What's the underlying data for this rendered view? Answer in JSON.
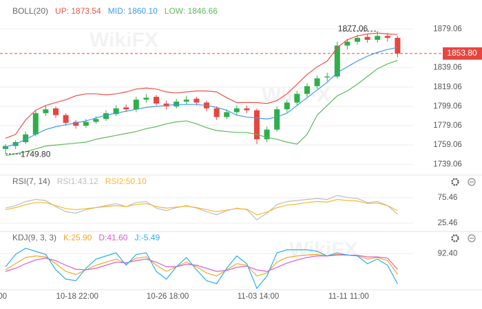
{
  "chart_data": [
    {
      "type": "candlestick",
      "title": "BOLL(20)",
      "categories": [
        "00",
        null,
        null,
        null,
        null,
        null,
        null,
        "10-18 22:00",
        null,
        null,
        null,
        null,
        null,
        null,
        null,
        null,
        "10-26 18:00",
        null,
        null,
        null,
        null,
        null,
        null,
        null,
        null,
        "11-03 14:00",
        null,
        null,
        null,
        null,
        null,
        null,
        null,
        null,
        "11-11 11:00",
        null,
        null,
        null,
        null,
        null
      ],
      "open": [
        1755,
        1758,
        1762,
        1770,
        1792,
        1797,
        1790,
        1783,
        1779,
        1783,
        1786,
        1791,
        1798,
        1796,
        1806,
        1809,
        1802,
        1799,
        1804,
        1807,
        1803,
        1797,
        1788,
        1793,
        1797,
        1795,
        1765,
        1775,
        1796,
        1803,
        1812,
        1820,
        1829,
        1830,
        1862,
        1866,
        1871,
        1868,
        1872,
        1870
      ],
      "high": [
        1760,
        1764,
        1773,
        1795,
        1800,
        1799,
        1792,
        1785,
        1786,
        1789,
        1795,
        1800,
        1801,
        1809,
        1812,
        1811,
        1805,
        1807,
        1810,
        1809,
        1805,
        1799,
        1796,
        1800,
        1800,
        1797,
        1778,
        1799,
        1806,
        1815,
        1823,
        1831,
        1834,
        1866,
        1869,
        1873,
        1874,
        1877.06,
        1875,
        1872
      ],
      "low": [
        1749.8,
        1755,
        1760,
        1768,
        1789,
        1787,
        1779,
        1776,
        1777,
        1781,
        1784,
        1789,
        1793,
        1793,
        1803,
        1800,
        1796,
        1797,
        1801,
        1800,
        1794,
        1785,
        1786,
        1790,
        1792,
        1760,
        1762,
        1773,
        1793,
        1800,
        1809,
        1817,
        1825,
        1828,
        1858,
        1863,
        1865,
        1865,
        1866,
        1850
      ],
      "close": [
        1758,
        1762,
        1770,
        1792,
        1796,
        1790,
        1782,
        1779,
        1783,
        1786,
        1792,
        1797,
        1796,
        1806,
        1808,
        1802,
        1799,
        1804,
        1806,
        1803,
        1797,
        1788,
        1793,
        1797,
        1795,
        1765,
        1775,
        1796,
        1803,
        1812,
        1820,
        1828,
        1830,
        1862,
        1866,
        1870,
        1868,
        1872,
        1870,
        1853.8
      ],
      "up_color": "#2fae4a",
      "down_color": "#e8453f",
      "series": [
        {
          "name": "UP: 1873.54",
          "color": "#ef4f48",
          "values": [
            1766,
            1770,
            1785,
            1795,
            1800,
            1803,
            1806,
            1810,
            1812,
            1812,
            1811,
            1812,
            1814,
            1817,
            1818,
            1817,
            1814,
            1813,
            1814,
            1815,
            1815,
            1814,
            1808,
            1803,
            1803,
            1803,
            1802,
            1805,
            1812,
            1822,
            1832,
            1840,
            1846,
            1860,
            1868,
            1872,
            1874,
            1875,
            1874,
            1873.54
          ]
        },
        {
          "name": "MID: 1860.10",
          "color": "#3d9be9",
          "values": [
            1757,
            1760,
            1765,
            1770,
            1775,
            1778,
            1780,
            1782,
            1784,
            1787,
            1790,
            1792,
            1794,
            1796,
            1798,
            1799,
            1800,
            1801,
            1801,
            1801,
            1800,
            1798,
            1795,
            1790,
            1788,
            1787,
            1786,
            1788,
            1792,
            1800,
            1808,
            1816,
            1824,
            1834,
            1840,
            1846,
            1851,
            1855,
            1858,
            1860.1
          ]
        },
        {
          "name": "LOW: 1846.66",
          "color": "#5cb85c",
          "values": [
            1748,
            1750,
            1752,
            1755,
            1758,
            1759,
            1760,
            1761,
            1762,
            1765,
            1767,
            1769,
            1771,
            1773,
            1776,
            1778,
            1781,
            1783,
            1784,
            1781,
            1777,
            1774,
            1773,
            1772,
            1772,
            1770,
            1767,
            1765,
            1762,
            1760,
            1770,
            1790,
            1800,
            1810,
            1815,
            1822,
            1830,
            1838,
            1843,
            1846.66
          ]
        }
      ],
      "ylim": [
        1730,
        1895
      ],
      "yticks": [
        1879.06,
        1839.06,
        1819.06,
        1799.06,
        1779.06,
        1759.06,
        1739.06
      ],
      "grid": true,
      "last_price": {
        "value": 1853.8,
        "label": "1853.80"
      },
      "annotations": [
        {
          "value": 1877.06,
          "label": "1877.06"
        },
        {
          "value": 1749.8,
          "label": "1749.80"
        }
      ],
      "watermark": "WikiFX"
    },
    {
      "type": "line",
      "title": "RSI(7, 14)",
      "series": [
        {
          "name": "RSI1:43.12",
          "color": "#bdbdbd",
          "values": [
            55,
            60,
            68,
            72,
            70,
            58,
            48,
            45,
            52,
            56,
            60,
            64,
            58,
            66,
            68,
            55,
            50,
            56,
            60,
            55,
            48,
            42,
            50,
            55,
            52,
            32,
            45,
            62,
            68,
            70,
            72,
            74,
            72,
            80,
            76,
            74,
            66,
            68,
            60,
            43.12
          ]
        },
        {
          "name": "RSI2:50.10",
          "color": "#f5b82e",
          "values": [
            52,
            56,
            62,
            66,
            66,
            60,
            54,
            52,
            54,
            56,
            58,
            60,
            58,
            62,
            64,
            58,
            55,
            57,
            59,
            56,
            52,
            48,
            51,
            54,
            53,
            42,
            47,
            56,
            61,
            63,
            66,
            68,
            67,
            72,
            70,
            69,
            64,
            65,
            60,
            50.1
          ]
        }
      ],
      "ylim": [
        10,
        95
      ],
      "yticks": [
        75.46,
        25.46
      ],
      "grid": true
    },
    {
      "type": "line",
      "title": "KDJ(9, 3, 3)",
      "series": [
        {
          "name": "K:25.90",
          "color": "#f5a623",
          "values": [
            40,
            60,
            80,
            85,
            82,
            60,
            35,
            25,
            40,
            55,
            65,
            75,
            60,
            78,
            82,
            55,
            35,
            50,
            65,
            50,
            30,
            20,
            40,
            60,
            55,
            20,
            30,
            65,
            80,
            85,
            88,
            90,
            85,
            90,
            88,
            86,
            75,
            80,
            70,
            25.9
          ]
        },
        {
          "name": "D:41.60",
          "color": "#d45fd4",
          "values": [
            35,
            45,
            60,
            72,
            78,
            70,
            55,
            42,
            40,
            45,
            55,
            65,
            63,
            70,
            75,
            65,
            50,
            50,
            58,
            55,
            45,
            35,
            38,
            48,
            52,
            40,
            35,
            48,
            62,
            72,
            80,
            85,
            85,
            88,
            88,
            87,
            82,
            82,
            78,
            41.6
          ]
        },
        {
          "name": "J:-5.49",
          "color": "#29aef0",
          "values": [
            50,
            90,
            110,
            100,
            90,
            40,
            10,
            5,
            45,
            75,
            85,
            95,
            55,
            90,
            95,
            35,
            10,
            50,
            80,
            40,
            5,
            -5,
            45,
            85,
            60,
            -20,
            20,
            95,
            105,
            105,
            105,
            100,
            85,
            95,
            88,
            85,
            60,
            75,
            55,
            -5.49
          ]
        }
      ],
      "ylim": [
        -20,
        120
      ],
      "yticks": [
        {
          "value": 92.4,
          "label": "92.40"
        }
      ],
      "grid": true
    }
  ]
}
